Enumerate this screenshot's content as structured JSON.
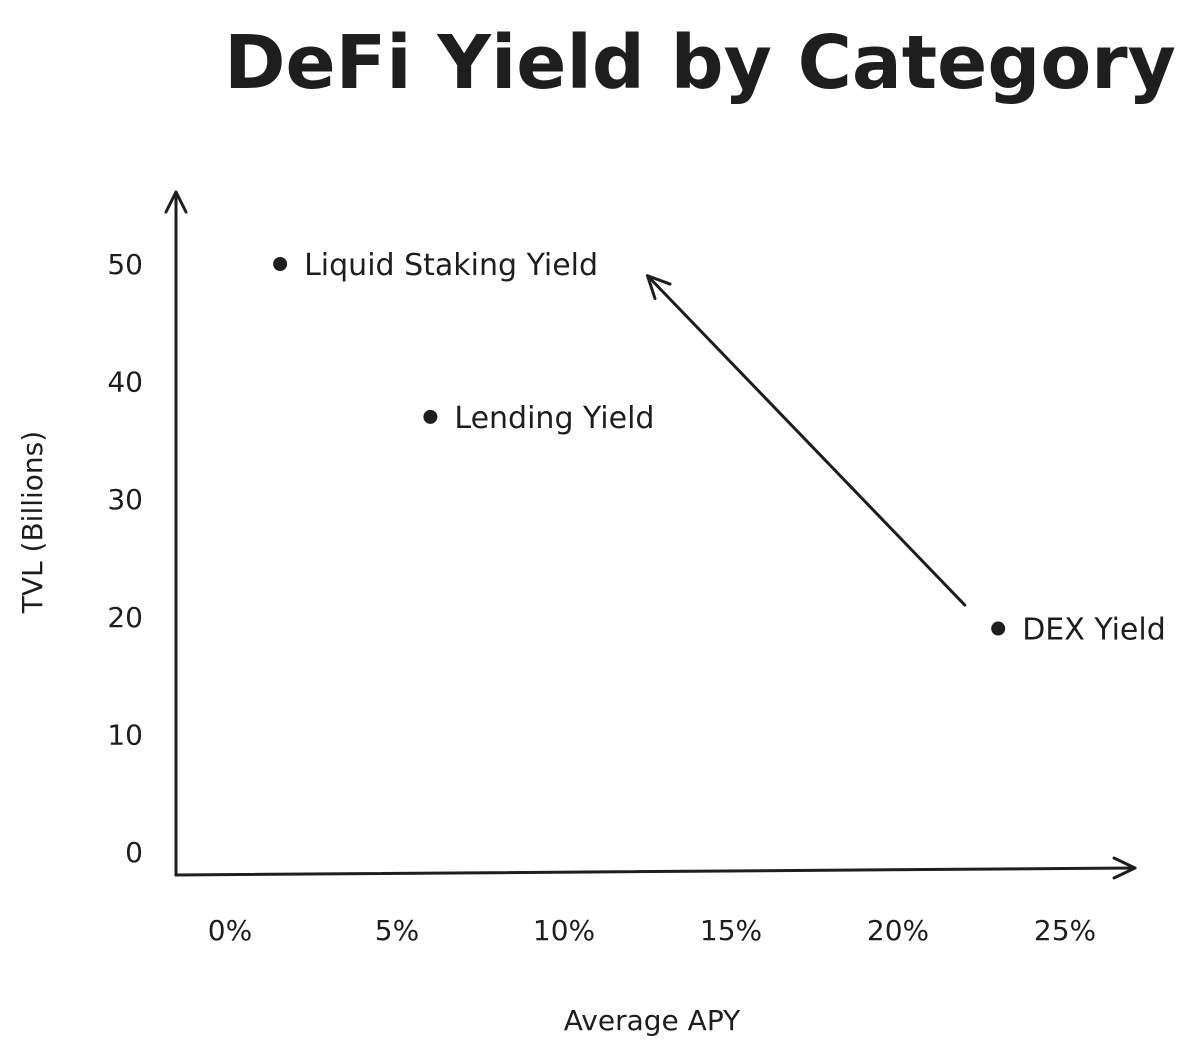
{
  "chart_data": {
    "type": "scatter",
    "title": "DeFi Yield by Category",
    "xlabel": "Average APY",
    "ylabel": "TVL (Billions)",
    "x_ticks": [
      "0%",
      "5%",
      "10%",
      "15%",
      "20%",
      "25%"
    ],
    "y_ticks": [
      "0",
      "10",
      "20",
      "30",
      "40",
      "50"
    ],
    "xlim": [
      0,
      25
    ],
    "ylim": [
      0,
      50
    ],
    "grid": false,
    "points": [
      {
        "label": "Liquid Staking Yield",
        "x": 1.5,
        "y": 50
      },
      {
        "label": "Lending Yield",
        "x": 6,
        "y": 37
      },
      {
        "label": "DEX Yield",
        "x": 23,
        "y": 19
      }
    ],
    "annotations": [
      {
        "type": "arrow",
        "from": {
          "x": 22,
          "y": 21
        },
        "to": {
          "x": 12.5,
          "y": 49
        }
      }
    ]
  }
}
